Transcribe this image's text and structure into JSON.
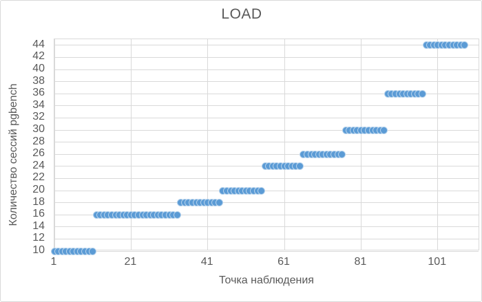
{
  "chart_data": {
    "type": "scatter",
    "title": "LOAD",
    "xlabel": "Точка наблюдения",
    "ylabel": "Количество сессий pgbench",
    "xlim": [
      1,
      112
    ],
    "ylim": [
      10,
      45
    ],
    "x_ticks": [
      1,
      21,
      41,
      61,
      81,
      101
    ],
    "y_ticks": [
      10,
      12,
      14,
      16,
      18,
      20,
      22,
      24,
      26,
      28,
      30,
      32,
      34,
      36,
      38,
      40,
      42,
      44
    ],
    "grid": true,
    "legend": false,
    "marker_color": "#5b9bd5",
    "grid_color": "#d9d9d9",
    "text_color": "#595959",
    "marker_diameter_px": 11,
    "series": [
      {
        "name": "LOAD",
        "steps": [
          {
            "x_start": 1,
            "x_end": 11,
            "y": 10
          },
          {
            "x_start": 12,
            "x_end": 33,
            "y": 16
          },
          {
            "x_start": 34,
            "x_end": 44,
            "y": 18
          },
          {
            "x_start": 45,
            "x_end": 55,
            "y": 20
          },
          {
            "x_start": 56,
            "x_end": 65,
            "y": 24
          },
          {
            "x_start": 66,
            "x_end": 76,
            "y": 26
          },
          {
            "x_start": 77,
            "x_end": 87,
            "y": 30
          },
          {
            "x_start": 88,
            "x_end": 97,
            "y": 36
          },
          {
            "x_start": 98,
            "x_end": 108,
            "y": 44
          }
        ]
      }
    ]
  }
}
